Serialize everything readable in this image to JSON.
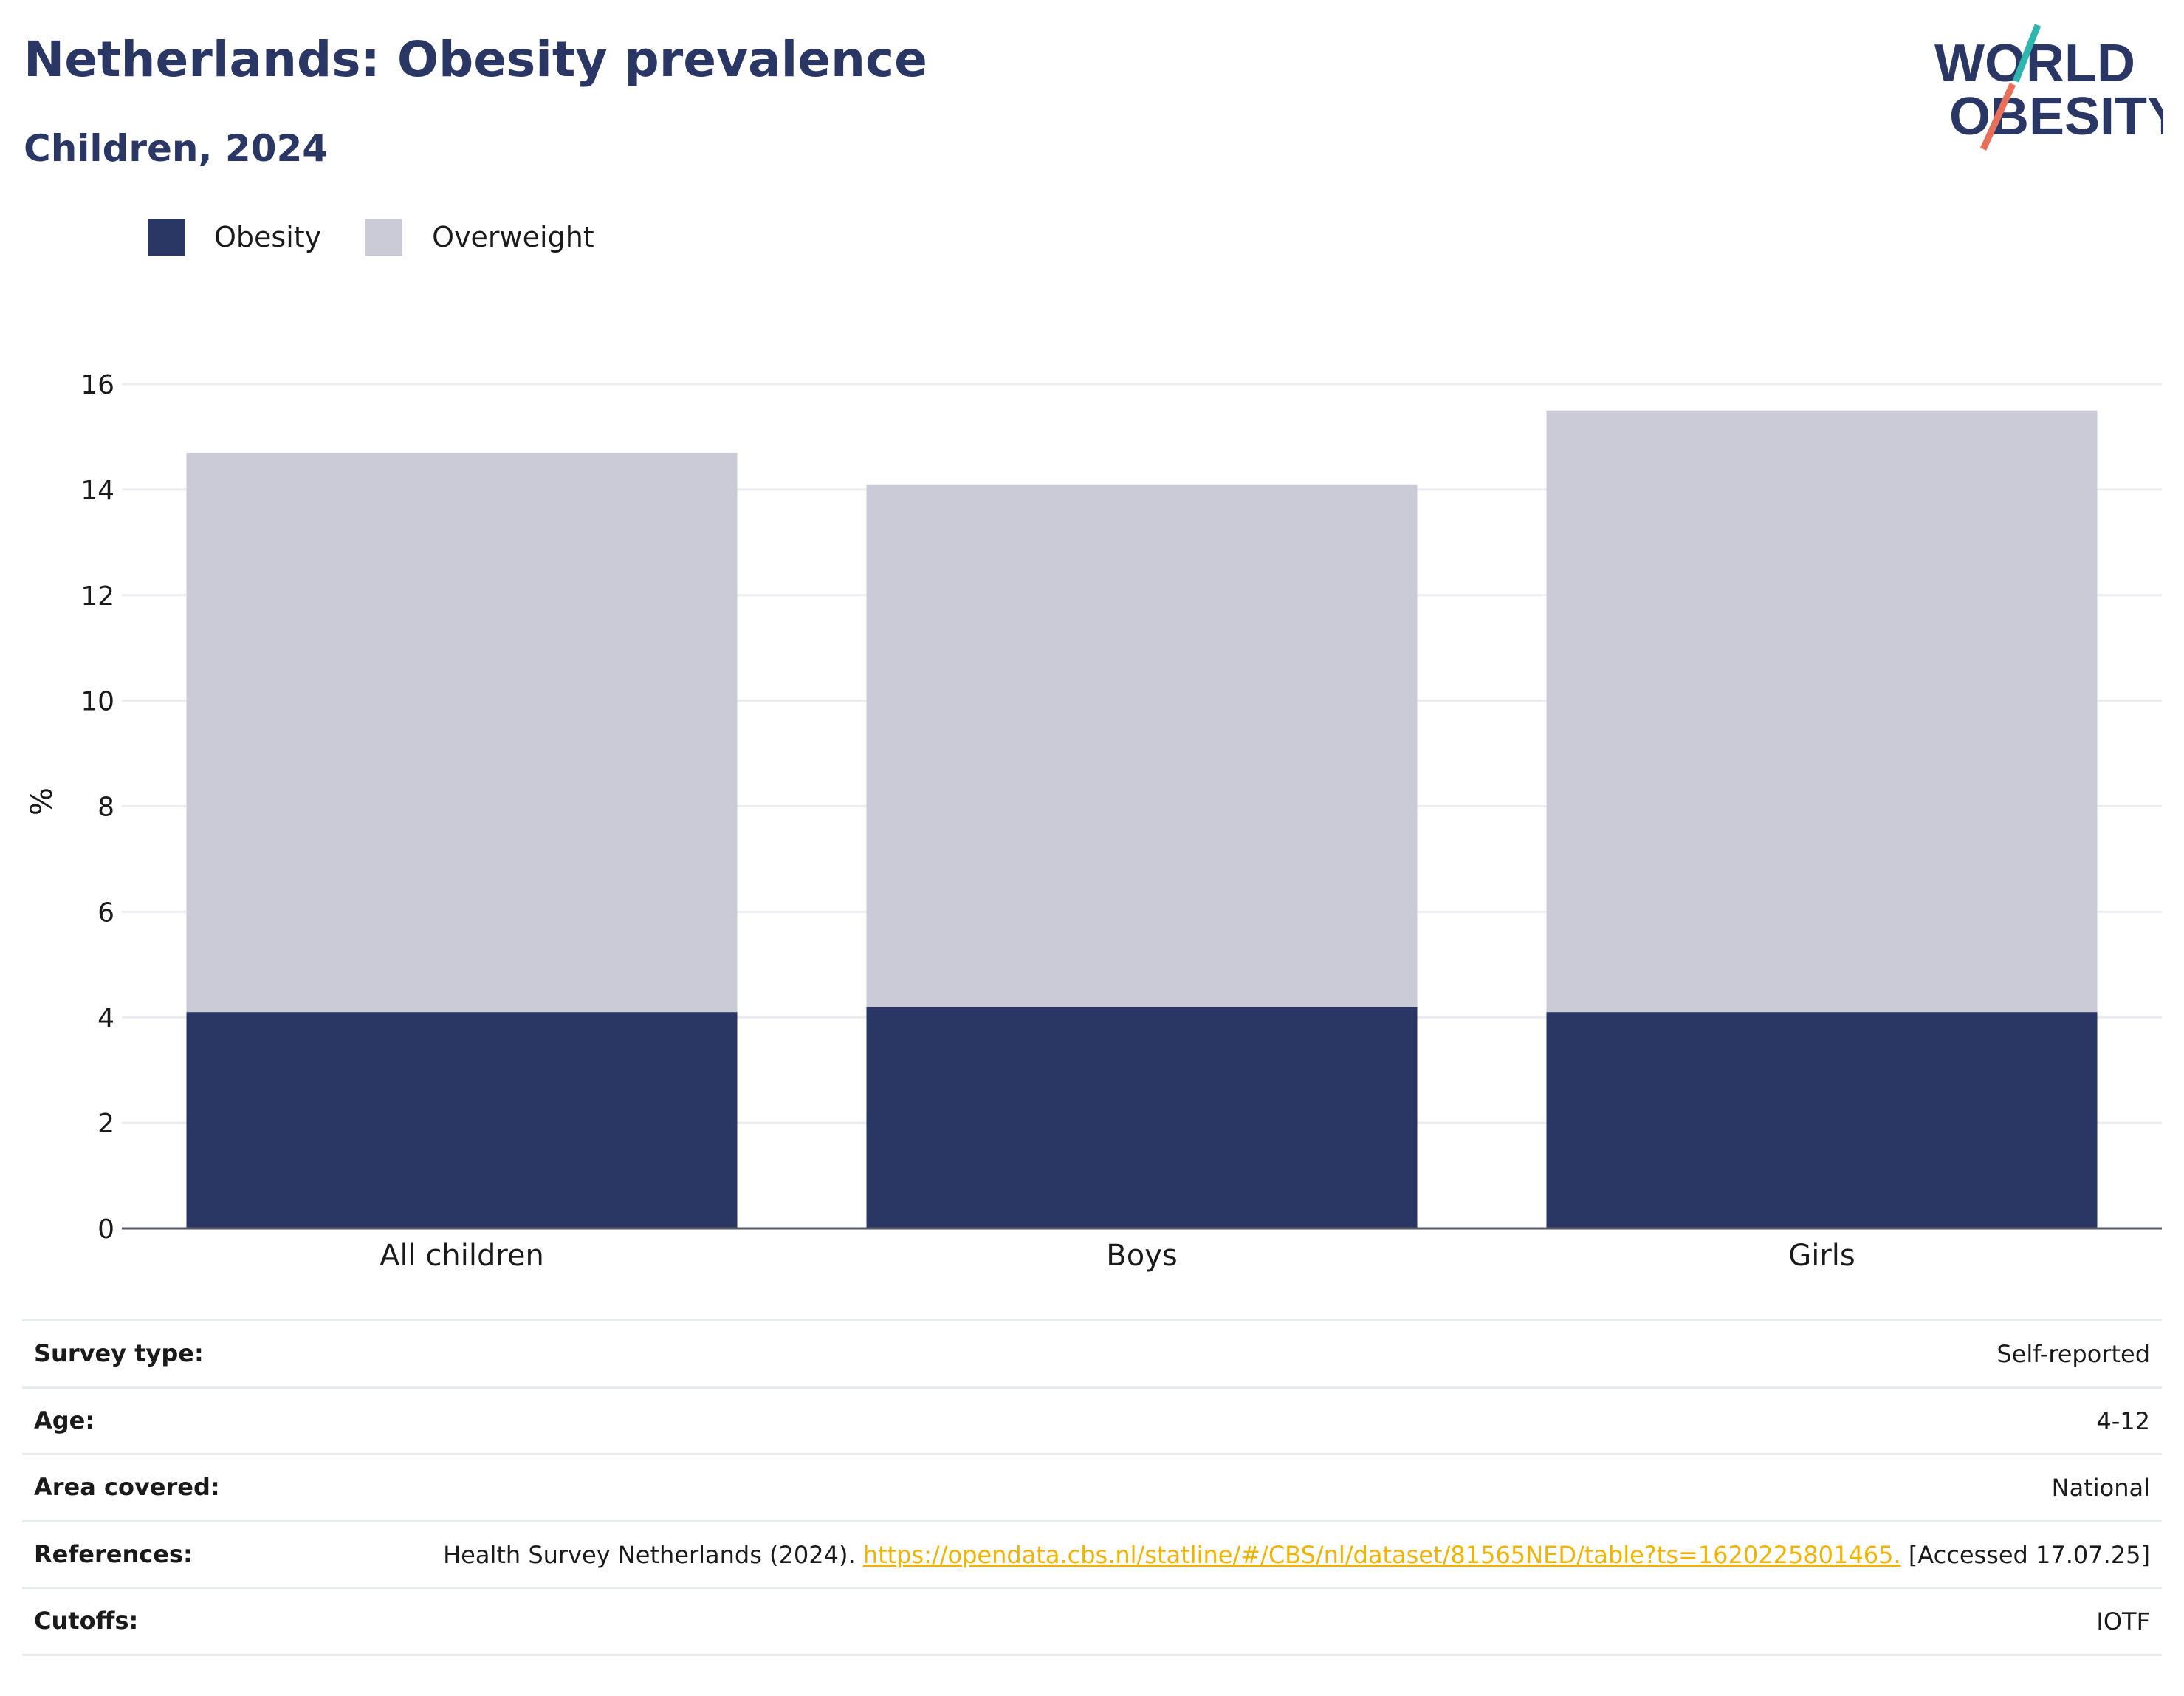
{
  "header": {
    "title": "Netherlands: Obesity prevalence",
    "subtitle": "Children, 2024"
  },
  "logo": {
    "line1": "WORLD",
    "line2": "OBESITY"
  },
  "colors": {
    "obesity": "#2a3765",
    "overweight": "#cacbd7",
    "accent_teal": "#2fb5b0",
    "accent_coral": "#e8705a",
    "link": "#f0b400"
  },
  "chart_data": {
    "type": "bar",
    "stacked": true,
    "categories": [
      "All children",
      "Boys",
      "Girls"
    ],
    "series": [
      {
        "name": "Obesity",
        "values": [
          4.1,
          4.2,
          4.1
        ]
      },
      {
        "name": "Overweight",
        "values": [
          10.6,
          9.9,
          11.4
        ]
      }
    ],
    "title": "",
    "xlabel": "",
    "ylabel": "%",
    "ylim": [
      0,
      16
    ],
    "yticks": [
      0,
      2,
      4,
      6,
      8,
      10,
      12,
      14,
      16
    ],
    "grid": true,
    "legend": "top-left"
  },
  "meta": {
    "survey_type": {
      "label": "Survey type:",
      "value": "Self-reported"
    },
    "age": {
      "label": "Age:",
      "value": "4-12"
    },
    "area": {
      "label": "Area covered:",
      "value": "National"
    },
    "references": {
      "label": "References:",
      "prefix": "Health Survey Netherlands (2024).",
      "link": "https://opendata.cbs.nl/statline/#/CBS/nl/dataset/81565NED/table?ts=1620225801465.",
      "suffix": "[Accessed 17.07.25]"
    },
    "cutoffs": {
      "label": "Cutoffs:",
      "value": "IOTF"
    }
  }
}
